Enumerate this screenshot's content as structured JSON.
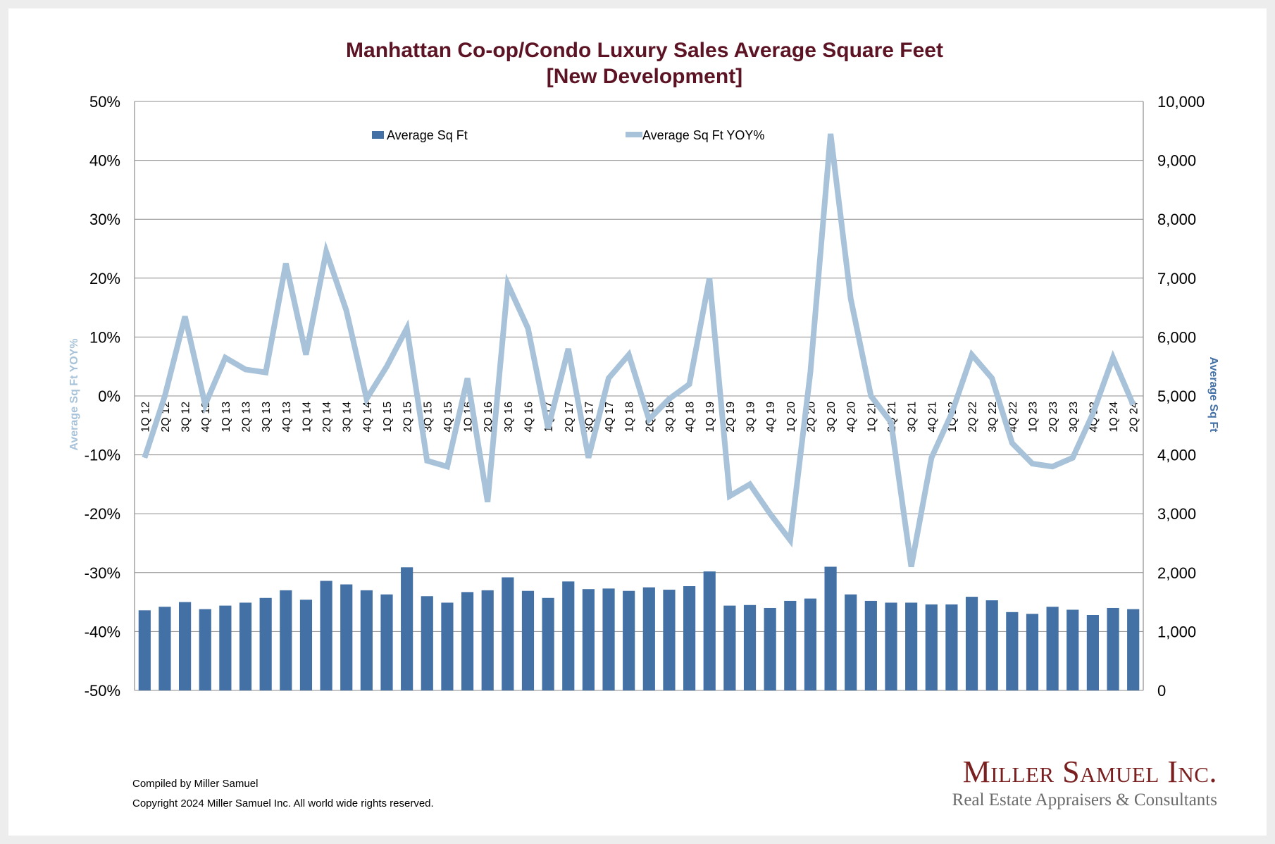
{
  "chart_data": {
    "type": "bar+line",
    "title": "Manhattan Co-op/Condo Luxury Sales Average Square Feet",
    "subtitle": "[New Development]",
    "y_left_label": "Average Sq Ft YOY%",
    "y_right_label": "Average Sq Ft",
    "y_left_lim": [
      -50,
      50
    ],
    "y_left_ticks": [
      "50%",
      "40%",
      "30%",
      "20%",
      "10%",
      "0%",
      "-10%",
      "-20%",
      "-30%",
      "-40%",
      "-50%"
    ],
    "y_right_lim": [
      0,
      10000
    ],
    "y_right_ticks": [
      "10,000",
      "9,000",
      "8,000",
      "7,000",
      "6,000",
      "5,000",
      "4,000",
      "3,000",
      "2,000",
      "1,000",
      "0"
    ],
    "grid": true,
    "legend_position": "top",
    "categories": [
      "1Q 12",
      "2Q 12",
      "3Q 12",
      "4Q 12",
      "1Q 13",
      "2Q 13",
      "3Q 13",
      "4Q 13",
      "1Q 14",
      "2Q 14",
      "3Q 14",
      "4Q 14",
      "1Q 15",
      "2Q 15",
      "3Q 15",
      "4Q 15",
      "1Q 16",
      "2Q 16",
      "3Q 16",
      "4Q 16",
      "1Q 17",
      "2Q 17",
      "3Q 17",
      "4Q 17",
      "1Q 18",
      "2Q 18",
      "3Q 18",
      "4Q 18",
      "1Q 19",
      "2Q 19",
      "3Q 19",
      "4Q 19",
      "1Q 20",
      "2Q 20",
      "3Q 20",
      "4Q 20",
      "1Q 21",
      "2Q 21",
      "3Q 21",
      "4Q 21",
      "1Q 22",
      "2Q 22",
      "3Q 22",
      "4Q 22",
      "1Q 23",
      "2Q 23",
      "3Q 23",
      "4Q 23",
      "1Q 24",
      "2Q 24"
    ],
    "series": [
      {
        "name": "Average Sq Ft",
        "kind": "bar",
        "axis": "right",
        "color": "#4371a6",
        "values": [
          1360,
          1420,
          1500,
          1380,
          1440,
          1490,
          1570,
          1700,
          1540,
          1860,
          1800,
          1700,
          1630,
          2090,
          1600,
          1490,
          1670,
          1700,
          1920,
          1690,
          1570,
          1850,
          1720,
          1730,
          1690,
          1750,
          1710,
          1770,
          2020,
          1440,
          1450,
          1400,
          1520,
          1560,
          2100,
          1630,
          1520,
          1490,
          1490,
          1460,
          1460,
          1590,
          1530,
          1330,
          1300,
          1420,
          1370,
          1280,
          1400,
          1380
        ]
      },
      {
        "name": "Average Sq Ft YOY%",
        "kind": "line",
        "axis": "left",
        "color": "#a8c3d9",
        "values": [
          -10.5,
          0,
          13.5,
          -1.5,
          6.5,
          4.5,
          4,
          22.5,
          7,
          24.5,
          14.5,
          -0.5,
          5,
          11.5,
          -11,
          -12,
          3,
          -18,
          19,
          11.5,
          -5.5,
          8,
          -10.5,
          3,
          7,
          -4,
          -0.5,
          2,
          20,
          -17,
          -15,
          -20,
          -24.5,
          4,
          44.5,
          16.5,
          0,
          -4.5,
          -29,
          -10.5,
          -3,
          7,
          3,
          -8,
          -11.5,
          -12,
          -10.5,
          -3,
          6.5,
          -1.5
        ]
      }
    ]
  },
  "footer": {
    "compiled_by": "Compiled by Miller Samuel",
    "copyright": "Copyright 2024 Miller Samuel Inc.  All world wide rights reserved."
  },
  "logo": {
    "name": "Miller Samuel Inc.",
    "tagline": "Real Estate Appraisers & Consultants"
  }
}
